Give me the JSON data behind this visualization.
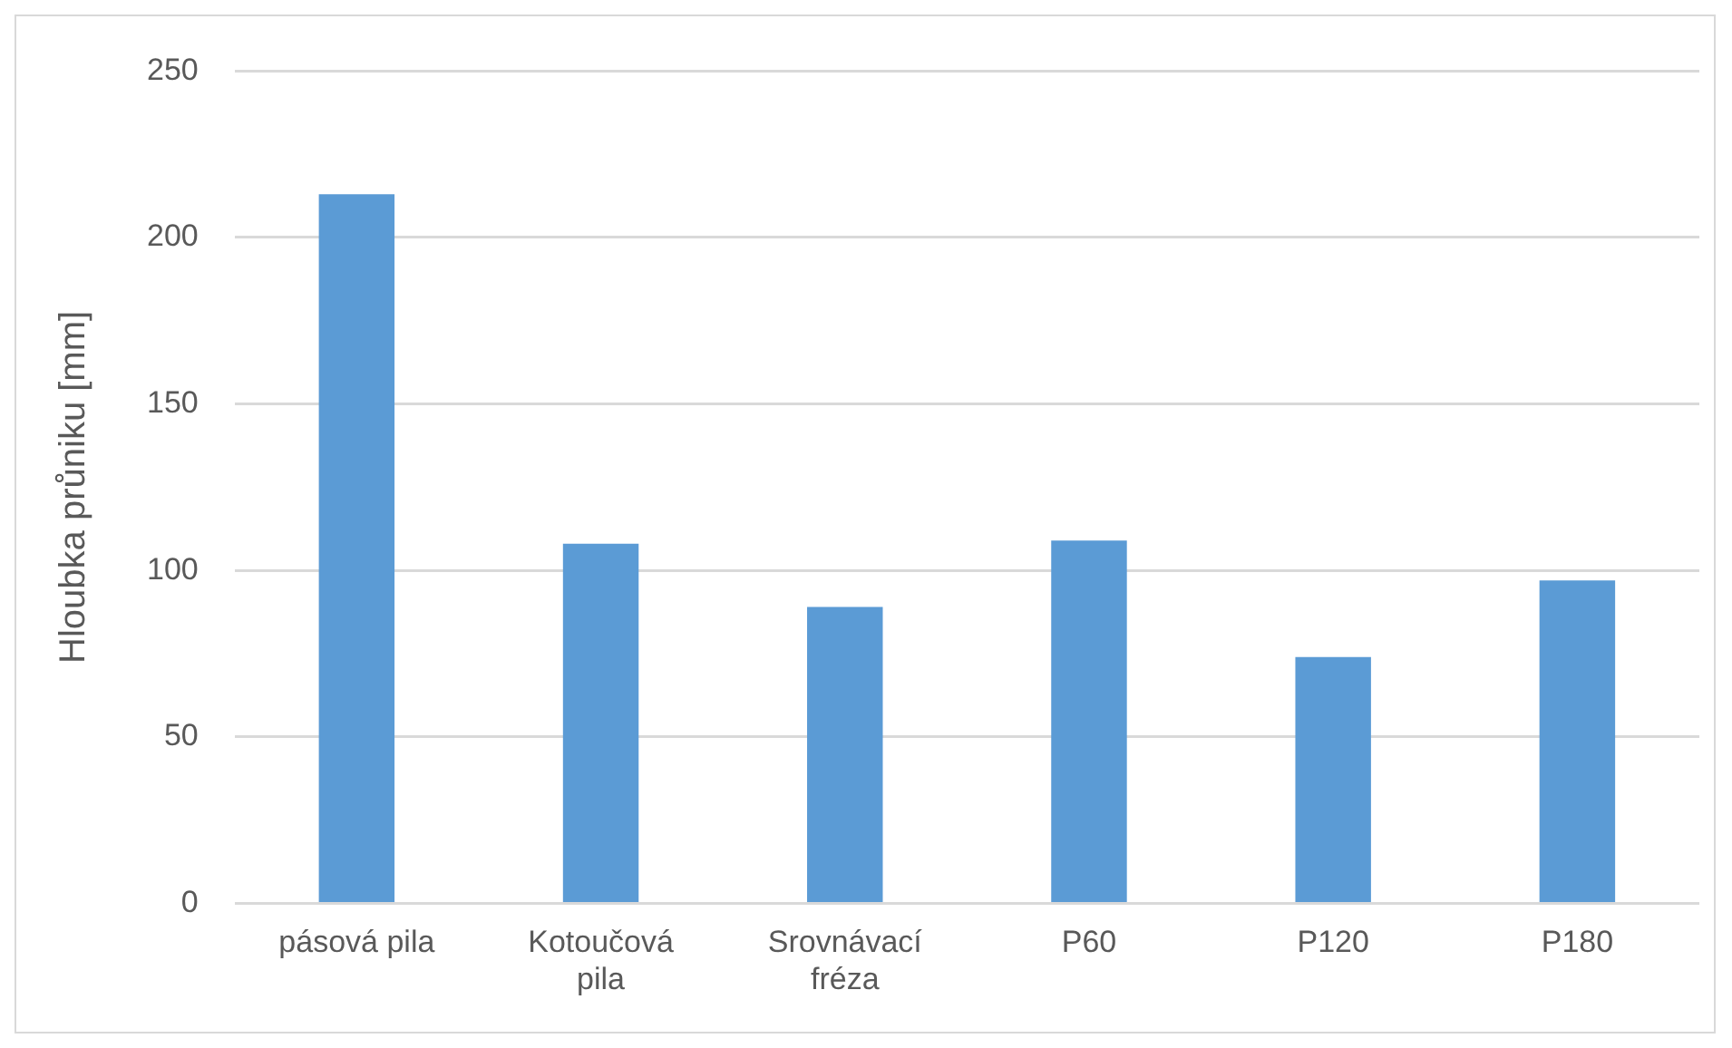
{
  "chart_data": {
    "type": "bar",
    "ylabel": "Hloubka průniku [mm]",
    "categories": [
      "pásová pila",
      "Kotoučová pila",
      "Srovnávací fréza",
      "P60",
      "P120",
      "P180"
    ],
    "values": [
      213,
      108,
      89,
      109,
      74,
      97
    ],
    "color": "#5b9bd5",
    "ylim": [
      0,
      250
    ],
    "yticks": [
      0,
      50,
      100,
      150,
      200,
      250
    ],
    "grid": "y"
  }
}
